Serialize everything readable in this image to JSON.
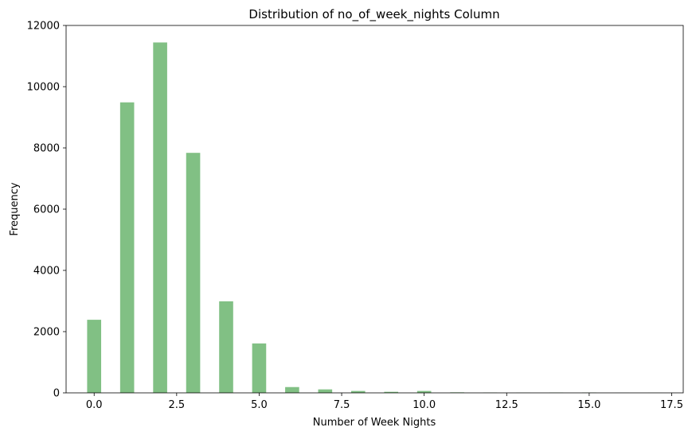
{
  "chart_data": {
    "type": "bar",
    "title": "Distribution of no_of_week_nights Column",
    "xlabel": "Number of Week Nights",
    "ylabel": "Frequency",
    "xlim": [
      -0.85,
      17.85
    ],
    "ylim": [
      0,
      12000
    ],
    "xticks": [
      "0.0",
      "2.5",
      "5.0",
      "7.5",
      "10.0",
      "12.5",
      "15.0",
      "17.5"
    ],
    "xtick_values": [
      0,
      2.5,
      5,
      7.5,
      10,
      12.5,
      15,
      17.5
    ],
    "yticks": [
      "0",
      "2000",
      "4000",
      "6000",
      "8000",
      "10000",
      "12000"
    ],
    "ytick_values": [
      0,
      2000,
      4000,
      6000,
      8000,
      10000,
      12000
    ],
    "bin_width": 0.425,
    "bins": [
      {
        "x": 0,
        "value": 2387
      },
      {
        "x": 1,
        "value": 9488
      },
      {
        "x": 2,
        "value": 11444
      },
      {
        "x": 3,
        "value": 7839
      },
      {
        "x": 4,
        "value": 2990
      },
      {
        "x": 5,
        "value": 1614
      },
      {
        "x": 6,
        "value": 189
      },
      {
        "x": 7,
        "value": 113
      },
      {
        "x": 8,
        "value": 62
      },
      {
        "x": 9,
        "value": 34
      },
      {
        "x": 10,
        "value": 62
      },
      {
        "x": 11,
        "value": 17
      },
      {
        "x": 12,
        "value": 9
      },
      {
        "x": 13,
        "value": 5
      },
      {
        "x": 14,
        "value": 7
      },
      {
        "x": 15,
        "value": 10
      },
      {
        "x": 16,
        "value": 2
      },
      {
        "x": 17,
        "value": 3
      }
    ],
    "grid": false,
    "bar_color": "#81c084"
  }
}
